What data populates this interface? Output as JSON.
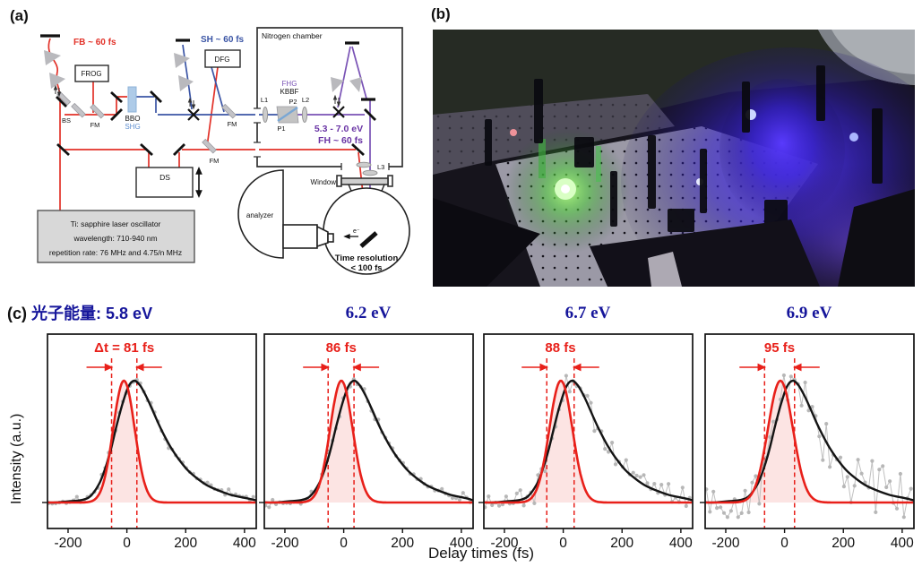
{
  "panels": {
    "a_label": "(a)",
    "b_label": "(b)"
  },
  "schematic": {
    "fb_label": "FB ~ 60 fs",
    "sh_label": "SH ~ 60 fs",
    "frog_label": "FROG",
    "dfg_label": "DFG",
    "bs_label": "BS",
    "fm_label": "FM",
    "bbo_label": "BBO",
    "shg_label": "SHG",
    "ds_label": "DS",
    "nitrogen_label": "Nitrogen chamber",
    "fhg_label": "FHG",
    "kbbf_label": "KBBF",
    "l1_label": "L1",
    "l2_label": "L2",
    "l3_label": "L3",
    "p1_label": "P1",
    "p2_label": "P2",
    "ev_range_label": "5.3 - 7.0 eV",
    "fh_label": "FH ~ 60 fs",
    "window_label": "Window",
    "analyzer_label": "analyzer",
    "electron_label": "e⁻",
    "time_res_line1": "Time resolution",
    "time_res_line2": "< 100 fs",
    "oscillator_line1": "Ti: sapphire laser oscillator",
    "oscillator_line2": "wavelength: 710-940 nm",
    "oscillator_line3": "repetition rate: 76 MHz and 4.75/n MHz",
    "colors": {
      "fundamental_red": "#e23128",
      "second_harmonic_blue": "#3b55a5",
      "fifth_harmonic_purple": "#7952b5",
      "purple_text": "#6a35a5",
      "prism_gray": "#b9b9bd",
      "box_gray_fill": "#d8d8d8"
    }
  },
  "photo": {
    "accent_colors": {
      "background": "#15131a",
      "green_laser_glow": "#6cf04e",
      "blue_laser_glow": "#4a2be0",
      "breadboard_gray": "#9b99a6"
    }
  },
  "panel_c": {
    "prefix": "(c)",
    "photon_energy_label": "光子能量:",
    "xlabel": "Delay times (fs)",
    "ylabel": "Intensity (a.u.)",
    "title_color": "#16169b"
  },
  "chart_common": {
    "xlim": [
      -270,
      440
    ],
    "xticks": [
      -200,
      0,
      200,
      400
    ],
    "grid": false,
    "legend": "none",
    "series_names": [
      "measured data (gray points)",
      "cross-correlation fit (black)",
      "laser pulse Gaussian (red)"
    ],
    "fit_shape_relative": [
      [
        -270,
        0
      ],
      [
        -220,
        0.01
      ],
      [
        -180,
        0.02
      ],
      [
        -150,
        0.05
      ],
      [
        -120,
        0.15
      ],
      [
        -100,
        0.27
      ],
      [
        -80,
        0.43
      ],
      [
        -60,
        0.63
      ],
      [
        -40,
        0.81
      ],
      [
        -20,
        0.95
      ],
      [
        0,
        1.0
      ],
      [
        20,
        0.96
      ],
      [
        40,
        0.875
      ],
      [
        60,
        0.77
      ],
      [
        80,
        0.66
      ],
      [
        100,
        0.56
      ],
      [
        125,
        0.45
      ],
      [
        150,
        0.36
      ],
      [
        180,
        0.27
      ],
      [
        210,
        0.205
      ],
      [
        245,
        0.145
      ],
      [
        285,
        0.1
      ],
      [
        330,
        0.062
      ],
      [
        380,
        0.036
      ],
      [
        440,
        0.018
      ]
    ],
    "colors": {
      "fit_black": "#141414",
      "laser_red": "#e8201a",
      "data_gray": "#b5b5b5",
      "gauss_fill": "rgba(232,32,26,0.12)",
      "dashed_red": "#e8201a"
    }
  },
  "chart_data": [
    {
      "type": "line",
      "title": "5.8 eV",
      "delta_label": "Δt = 81 fs",
      "delta_fs": 81,
      "dashed_lines_fs": [
        -52,
        34
      ],
      "gaussian": {
        "center_fs": -10,
        "fwhm_fs": 86,
        "amplitude": 1.0
      },
      "fit_peak_fs": 25,
      "noise_sigma": 0.015,
      "seed": 7
    },
    {
      "type": "line",
      "title": "6.2 eV",
      "delta_label": "86 fs",
      "delta_fs": 86,
      "dashed_lines_fs": [
        -53,
        35
      ],
      "gaussian": {
        "center_fs": -8,
        "fwhm_fs": 90,
        "amplitude": 1.0
      },
      "fit_peak_fs": 35,
      "noise_sigma": 0.015,
      "seed": 13
    },
    {
      "type": "line",
      "title": "6.7 eV",
      "delta_label": "88 fs",
      "delta_fs": 88,
      "dashed_lines_fs": [
        -56,
        37
      ],
      "gaussian": {
        "center_fs": -8,
        "fwhm_fs": 92,
        "amplitude": 1.0
      },
      "fit_peak_fs": 30,
      "noise_sigma": 0.05,
      "seed": 21
    },
    {
      "type": "line",
      "title": "6.9 eV",
      "delta_label": "95 fs",
      "delta_fs": 95,
      "dashed_lines_fs": [
        -68,
        34
      ],
      "gaussian": {
        "center_fs": -14,
        "fwhm_fs": 100,
        "amplitude": 1.0
      },
      "fit_peak_fs": 28,
      "noise_sigma": 0.11,
      "seed": 42
    }
  ]
}
